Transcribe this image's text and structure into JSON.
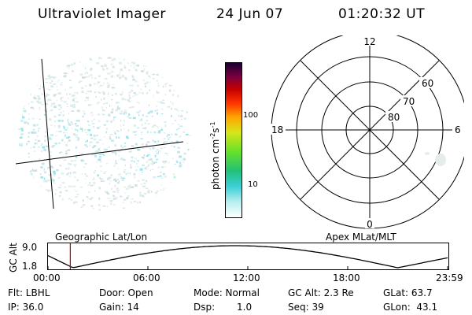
{
  "header": {
    "instrument": "Ultraviolet Imager",
    "date": "24 Jun 07",
    "time": "01:20:32 UT"
  },
  "colorbar": {
    "label": "photon cm",
    "label_sup1": "-2",
    "label_s": "s",
    "label_sup2": "-1",
    "ticks": [
      "100",
      "10"
    ]
  },
  "polar": {
    "labels": {
      "top": "12",
      "bottom": "0",
      "left": "18",
      "right": "6"
    },
    "rings": [
      "60",
      "70",
      "80"
    ]
  },
  "strip": {
    "axis_title": "GC Alt",
    "ymax": "9.0",
    "ymin": "1.8",
    "left_label": "Geographic Lat/Lon",
    "right_label": "Apex MLat/MLT",
    "xticks": [
      "00:00",
      "06:00",
      "12:00",
      "18:00",
      "23:59"
    ],
    "marker_time_hours": 1.34
  },
  "info": {
    "filter": "Flt: LBHL",
    "ip": "IP: 36.0",
    "door": "Door: Open",
    "gain": "Gain: 14",
    "mode": "Mode: Normal",
    "dsp_label": "Dsp:",
    "dsp_value": "1.0",
    "gc_alt": "GC Alt: 2.3 Re",
    "seq": "Seq: 39",
    "glat": "GLat: 63.7",
    "glon": "GLon:  43.1"
  }
}
